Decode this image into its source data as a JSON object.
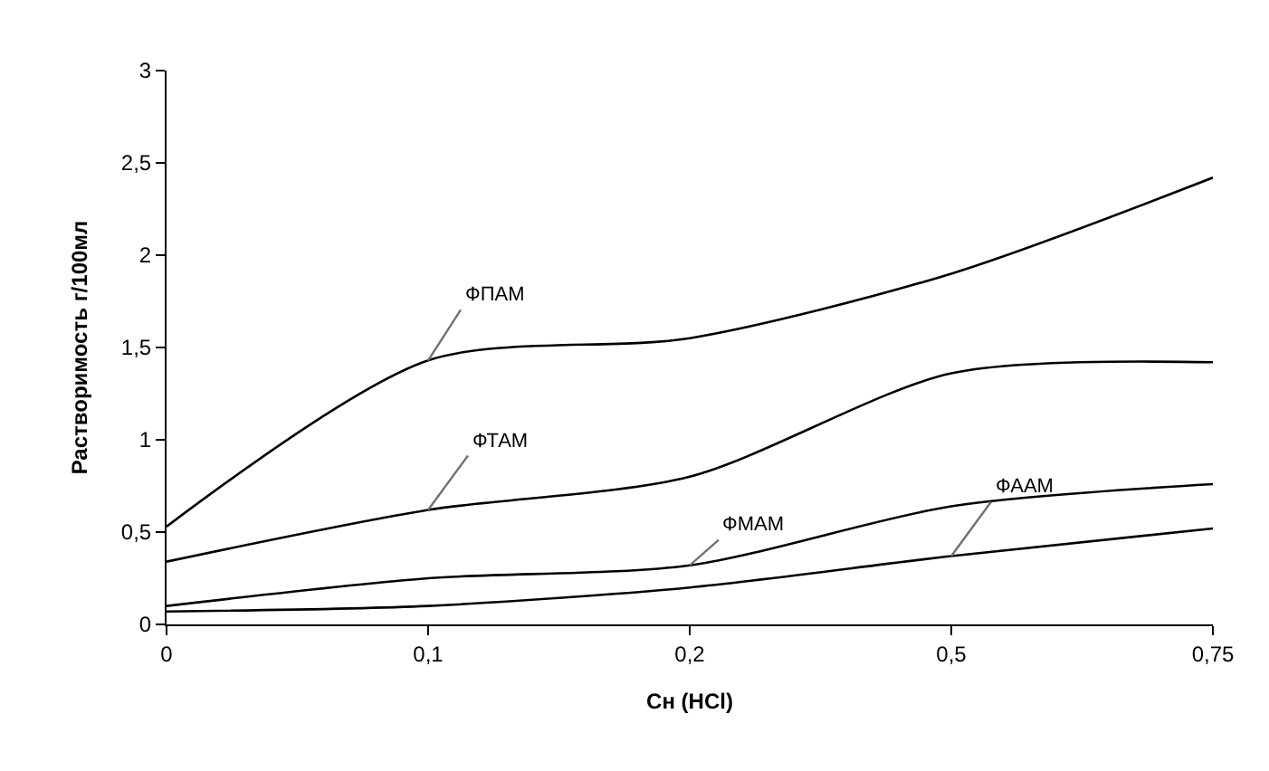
{
  "chart_data": {
    "type": "line",
    "xlabel": "Сн (HCl)",
    "ylabel": "Растворимость г/100мл",
    "categories": [
      "0",
      "0,1",
      "0,2",
      "0,5",
      "0,75"
    ],
    "series": [
      {
        "name": "ФПАМ",
        "color": "#000000",
        "values": [
          0.53,
          1.43,
          1.55,
          1.9,
          2.42
        ]
      },
      {
        "name": "ФТАМ",
        "color": "#000000",
        "values": [
          0.34,
          0.62,
          0.8,
          1.36,
          1.42
        ]
      },
      {
        "name": "ФМАМ",
        "color": "#000000",
        "values": [
          0.1,
          0.25,
          0.32,
          0.64,
          0.76
        ]
      },
      {
        "name": "ФААМ",
        "color": "#000000",
        "values": [
          0.07,
          0.1,
          0.2,
          0.37,
          0.52
        ]
      }
    ],
    "ylim": [
      0,
      3
    ],
    "yticks": [
      {
        "value": 0,
        "label": "0"
      },
      {
        "value": 0.5,
        "label": "0,5"
      },
      {
        "value": 1,
        "label": "1"
      },
      {
        "value": 1.5,
        "label": "1,5"
      },
      {
        "value": 2,
        "label": "2"
      },
      {
        "value": 2.5,
        "label": "2,5"
      },
      {
        "value": 3,
        "label": "3"
      }
    ],
    "legend": false,
    "marker": "none",
    "line_style": "solid"
  }
}
